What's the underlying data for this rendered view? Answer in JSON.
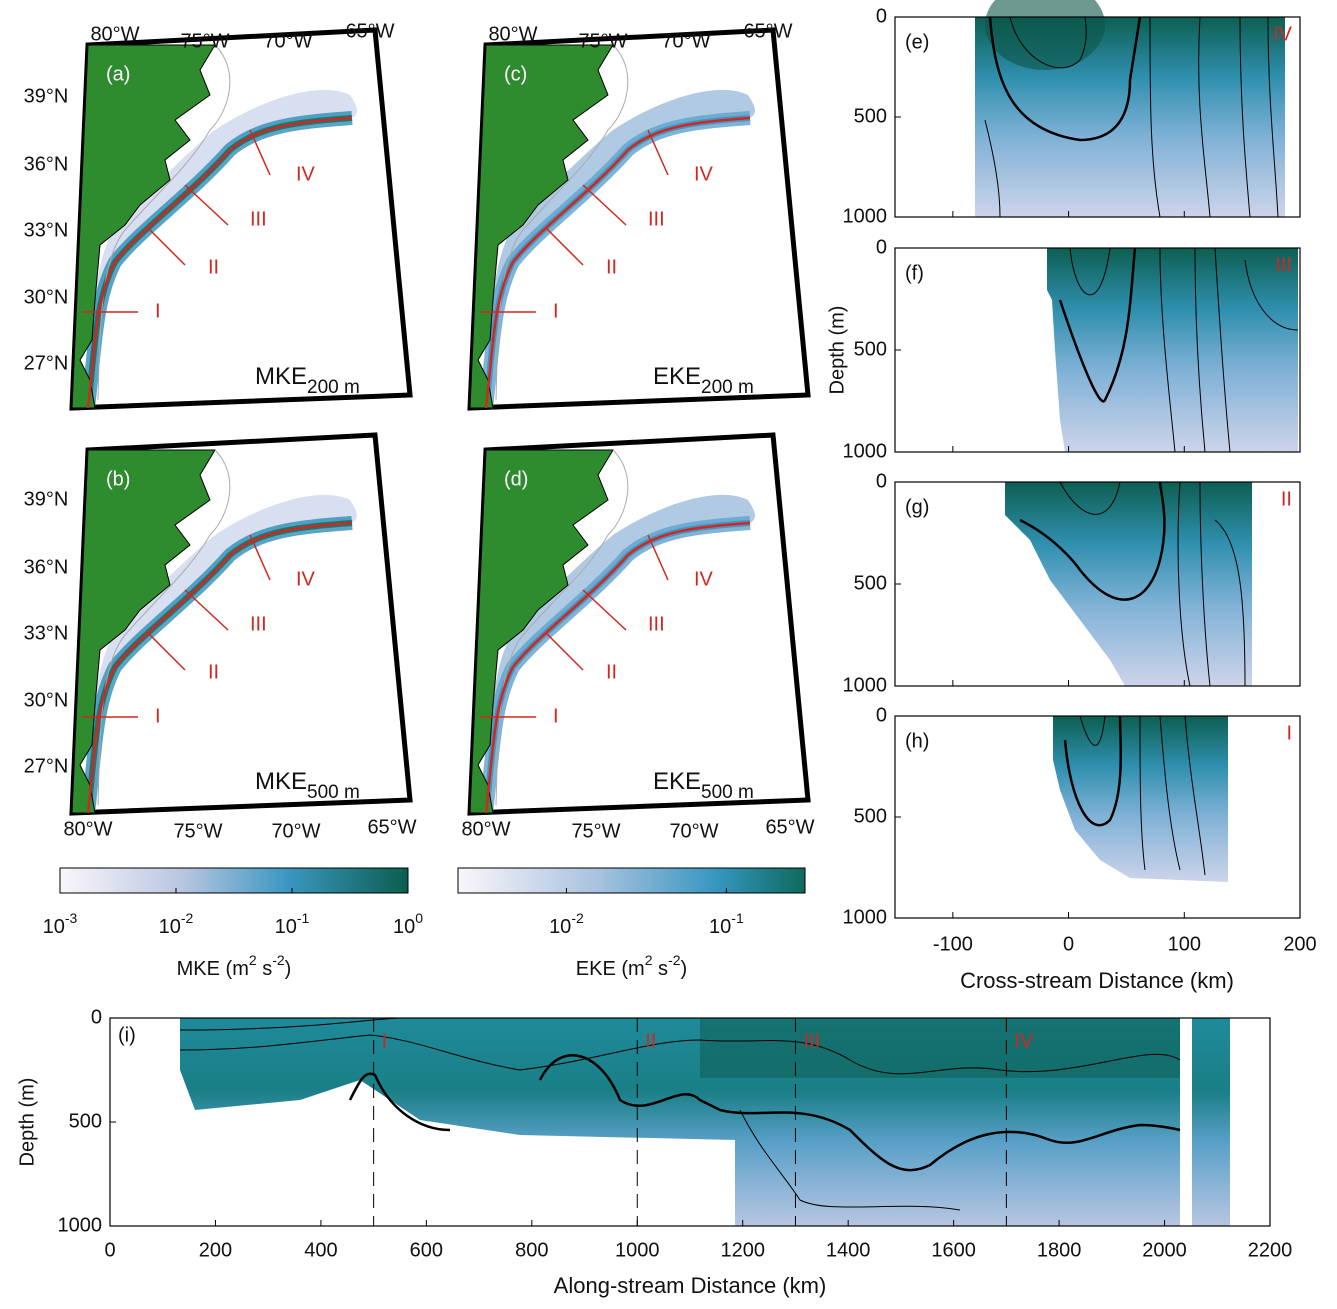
{
  "maps": {
    "panels": [
      {
        "label": "(a)",
        "quantity": "MKE",
        "depth": "200 m"
      },
      {
        "label": "(c)",
        "quantity": "EKE",
        "depth": "200 m"
      },
      {
        "label": "(b)",
        "quantity": "MKE",
        "depth": "500 m"
      },
      {
        "label": "(d)",
        "quantity": "EKE",
        "depth": "500 m"
      }
    ],
    "lon_labels": [
      "80°W",
      "75°W",
      "70°W",
      "65°W"
    ],
    "lat_labels": [
      "39°N",
      "36°N",
      "33°N",
      "30°N",
      "27°N"
    ],
    "section_labels": [
      "I",
      "II",
      "III",
      "IV"
    ]
  },
  "colorbars": [
    {
      "label": {
        "name": "MKE (m",
        "exp1": "2",
        "mid": " s",
        "exp2": "-2",
        "end": ")"
      },
      "clim": [
        0.001,
        1
      ],
      "ticks": [
        {
          "value": 0.001,
          "base": "10",
          "exponent": "-3"
        },
        {
          "value": 0.01,
          "base": "10",
          "exponent": "-2"
        },
        {
          "value": 0.1,
          "base": "10",
          "exponent": "-1"
        },
        {
          "value": 1,
          "base": "10",
          "exponent": "0"
        }
      ]
    },
    {
      "label": {
        "name": "EKE (m",
        "exp1": "2",
        "mid": " s",
        "exp2": "-2",
        "end": ")"
      },
      "clim": [
        0.0021,
        0.31
      ],
      "ticks": [
        {
          "value": 0.01,
          "base": "10",
          "exponent": "-2"
        },
        {
          "value": 0.1,
          "base": "10",
          "exponent": "-1"
        }
      ]
    }
  ],
  "sections": {
    "panels": [
      {
        "label": "(e)",
        "section": "IV"
      },
      {
        "label": "(f)",
        "section": "III"
      },
      {
        "label": "(g)",
        "section": "II"
      },
      {
        "label": "(h)",
        "section": "I"
      }
    ],
    "ylabel": "Depth (m)",
    "xlabel": "Cross-stream Distance (km)",
    "xlim": [
      -150,
      200
    ],
    "xticks": [
      -100,
      0,
      100,
      200
    ],
    "ylim": [
      0,
      1000
    ],
    "yticks": [
      0,
      500,
      1000
    ]
  },
  "along": {
    "label": "(i)",
    "ylabel": "Depth (m)",
    "xlabel": "Along-stream Distance (km)",
    "xlim": [
      0,
      2200
    ],
    "xticks": [
      0,
      200,
      400,
      600,
      800,
      1000,
      1200,
      1400,
      1600,
      1800,
      2000,
      2200
    ],
    "ylim": [
      0,
      1000
    ],
    "yticks": [
      0,
      500,
      1000
    ],
    "sections": [
      {
        "label": "I",
        "distance": 500
      },
      {
        "label": "II",
        "distance": 1000
      },
      {
        "label": "III",
        "distance": 1300
      },
      {
        "label": "IV",
        "distance": 1700
      }
    ]
  }
}
